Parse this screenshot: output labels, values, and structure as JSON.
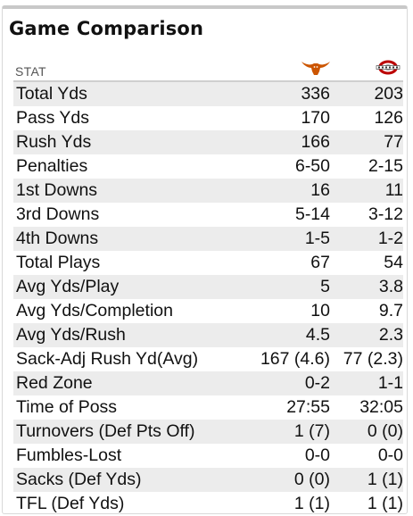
{
  "title": "Game Comparison",
  "header": {
    "stat_label": "STAT",
    "team_a_icon": "longhorn-logo-icon",
    "team_b_icon": "ohio-state-logo-icon"
  },
  "colors": {
    "team_a": "#cc5500",
    "team_b": "#bb0000",
    "row_shade": "#ececec"
  },
  "rows": [
    {
      "label": "Total Yds",
      "a": "336",
      "b": "203"
    },
    {
      "label": "Pass Yds",
      "a": "170",
      "b": "126"
    },
    {
      "label": "Rush Yds",
      "a": "166",
      "b": "77"
    },
    {
      "label": "Penalties",
      "a": "6-50",
      "b": "2-15"
    },
    {
      "label": "1st Downs",
      "a": "16",
      "b": "11"
    },
    {
      "label": "3rd Downs",
      "a": "5-14",
      "b": "3-12"
    },
    {
      "label": "4th Downs",
      "a": "1-5",
      "b": "1-2"
    },
    {
      "label": "Total Plays",
      "a": "67",
      "b": "54"
    },
    {
      "label": "Avg Yds/Play",
      "a": "5",
      "b": "3.8"
    },
    {
      "label": "Avg Yds/Completion",
      "a": "10",
      "b": "9.7"
    },
    {
      "label": "Avg Yds/Rush",
      "a": "4.5",
      "b": "2.3"
    },
    {
      "label": "Sack-Adj Rush Yd(Avg)",
      "a": "167 (4.6)",
      "b": "77 (2.3)"
    },
    {
      "label": "Red Zone",
      "a": "0-2",
      "b": "1-1"
    },
    {
      "label": "Time of Poss",
      "a": "27:55",
      "b": "32:05"
    },
    {
      "label": "Turnovers (Def Pts Off)",
      "a": "1 (7)",
      "b": "0 (0)"
    },
    {
      "label": "Fumbles-Lost",
      "a": "0-0",
      "b": "0-0"
    },
    {
      "label": "Sacks (Def Yds)",
      "a": "0 (0)",
      "b": "1 (1)"
    },
    {
      "label": "TFL (Def Yds)",
      "a": "1 (1)",
      "b": "1 (1)"
    }
  ]
}
